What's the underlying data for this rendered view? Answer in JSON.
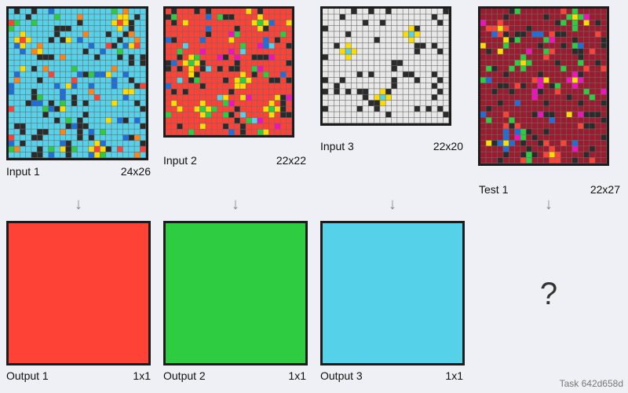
{
  "palette": {
    "black": "#2b2b2b",
    "blue": "#1e6fd9",
    "red": "#ff4136",
    "green": "#2ecc40",
    "yellow": "#ffdc00",
    "grey": "#e8e8e8",
    "magenta": "#f012be",
    "orange": "#ff851b",
    "cyan": "#55d2ea",
    "maroon": "#9b1c2e"
  },
  "examples": [
    {
      "input_label": "Input 1",
      "input_size": "24x26",
      "output_label": "Output 1",
      "output_size": "1x1",
      "bg": "cyan",
      "cols": 24,
      "rows": 26,
      "noise": [
        "black",
        "black",
        "black",
        "black",
        "black",
        "black",
        "blue",
        "blue",
        "red",
        "green",
        "yellow",
        "orange"
      ],
      "density": 0.27,
      "cross_center": "red",
      "cross_arm": "yellow",
      "crosses": [
        [
          2,
          5
        ],
        [
          19,
          2
        ],
        [
          15,
          24
        ]
      ],
      "output_color": "red"
    },
    {
      "input_label": "Input 2",
      "input_size": "22x22",
      "output_label": "Output 2",
      "output_size": "1x1",
      "bg": "red",
      "cols": 22,
      "rows": 22,
      "noise": [
        "black",
        "black",
        "black",
        "black",
        "black",
        "cyan",
        "blue",
        "yellow",
        "magenta",
        "green",
        "green"
      ],
      "density": 0.22,
      "cross_center": "green",
      "cross_arm": "yellow",
      "crosses": [
        [
          4,
          9
        ],
        [
          16,
          2
        ],
        [
          13,
          12
        ],
        [
          18,
          17
        ],
        [
          6,
          17
        ]
      ],
      "output_color": "green"
    },
    {
      "input_label": "Input 3",
      "input_size": "22x20",
      "output_label": "Output 3",
      "output_size": "1x1",
      "bg": "grey",
      "cols": 22,
      "rows": 20,
      "noise": [
        "black"
      ],
      "density": 0.12,
      "cross_center": "cyan",
      "cross_arm": "yellow",
      "crosses": [
        [
          15,
          4
        ],
        [
          4,
          7
        ],
        [
          10,
          15
        ]
      ],
      "output_color": "cyan"
    }
  ],
  "test": {
    "label": "Test 1",
    "size": "22x27",
    "bg": "maroon",
    "cols": 22,
    "rows": 27,
    "noise": [
      "black",
      "black",
      "black",
      "black",
      "black",
      "magenta",
      "green",
      "green",
      "blue",
      "yellow",
      "red"
    ],
    "density": 0.24,
    "crosses": [
      {
        "pos": [
          3,
          3
        ],
        "center": "yellow",
        "arm": "red"
      },
      {
        "pos": [
          16,
          1
        ],
        "center": "yellow",
        "arm": "green"
      },
      {
        "pos": [
          7,
          9
        ],
        "center": "yellow",
        "arm": "green"
      },
      {
        "pos": [
          16,
          12
        ],
        "center": "yellow",
        "arm": "magenta"
      },
      {
        "pos": [
          4,
          23
        ],
        "center": "yellow",
        "arm": "blue"
      },
      {
        "pos": [
          12,
          25
        ],
        "center": "yellow",
        "arm": "red"
      }
    ],
    "placeholder": "?"
  },
  "arrow_glyph": "↓",
  "task_label": "Task 642d658d"
}
